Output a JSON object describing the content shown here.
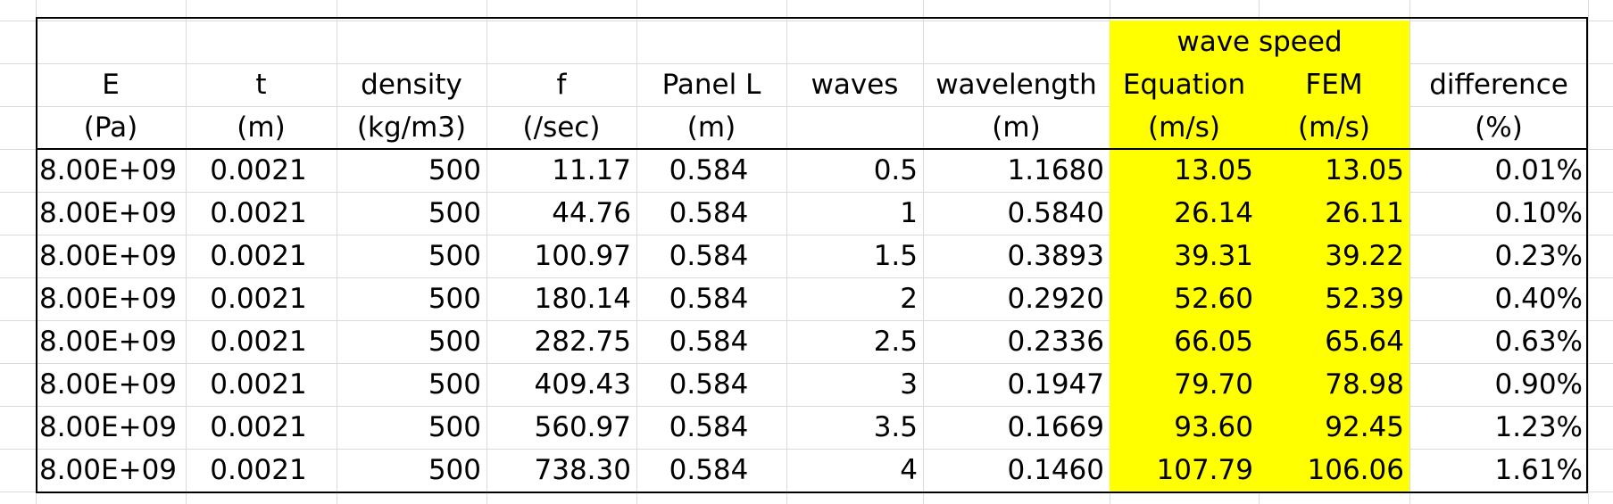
{
  "colors": {
    "highlight": "#ffff00",
    "border": "#000000",
    "grid": "#dadada"
  },
  "header": {
    "group_label": "wave speed",
    "columns": [
      {
        "name": "E",
        "unit": "(Pa)"
      },
      {
        "name": "t",
        "unit": "(m)"
      },
      {
        "name": "density",
        "unit": "(kg/m3)"
      },
      {
        "name": "f",
        "unit": "(/sec)"
      },
      {
        "name": "Panel L",
        "unit": "(m)"
      },
      {
        "name": "waves",
        "unit": ""
      },
      {
        "name": "wavelength",
        "unit": "(m)"
      },
      {
        "name": "Equation",
        "unit": "(m/s)"
      },
      {
        "name": "FEM",
        "unit": "(m/s)"
      },
      {
        "name": "difference",
        "unit": "(%)"
      }
    ]
  },
  "rows": [
    [
      "8.00E+09",
      "0.0021",
      "500",
      "11.17",
      "0.584",
      "0.5",
      "1.1680",
      "13.05",
      "13.05",
      "0.01%"
    ],
    [
      "8.00E+09",
      "0.0021",
      "500",
      "44.76",
      "0.584",
      "1",
      "0.5840",
      "26.14",
      "26.11",
      "0.10%"
    ],
    [
      "8.00E+09",
      "0.0021",
      "500",
      "100.97",
      "0.584",
      "1.5",
      "0.3893",
      "39.31",
      "39.22",
      "0.23%"
    ],
    [
      "8.00E+09",
      "0.0021",
      "500",
      "180.14",
      "0.584",
      "2",
      "0.2920",
      "52.60",
      "52.39",
      "0.40%"
    ],
    [
      "8.00E+09",
      "0.0021",
      "500",
      "282.75",
      "0.584",
      "2.5",
      "0.2336",
      "66.05",
      "65.64",
      "0.63%"
    ],
    [
      "8.00E+09",
      "0.0021",
      "500",
      "409.43",
      "0.584",
      "3",
      "0.1947",
      "79.70",
      "78.98",
      "0.90%"
    ],
    [
      "8.00E+09",
      "0.0021",
      "500",
      "560.97",
      "0.584",
      "3.5",
      "0.1669",
      "93.60",
      "92.45",
      "1.23%"
    ],
    [
      "8.00E+09",
      "0.0021",
      "500",
      "738.30",
      "0.584",
      "4",
      "0.1460",
      "107.79",
      "106.06",
      "1.61%"
    ]
  ]
}
